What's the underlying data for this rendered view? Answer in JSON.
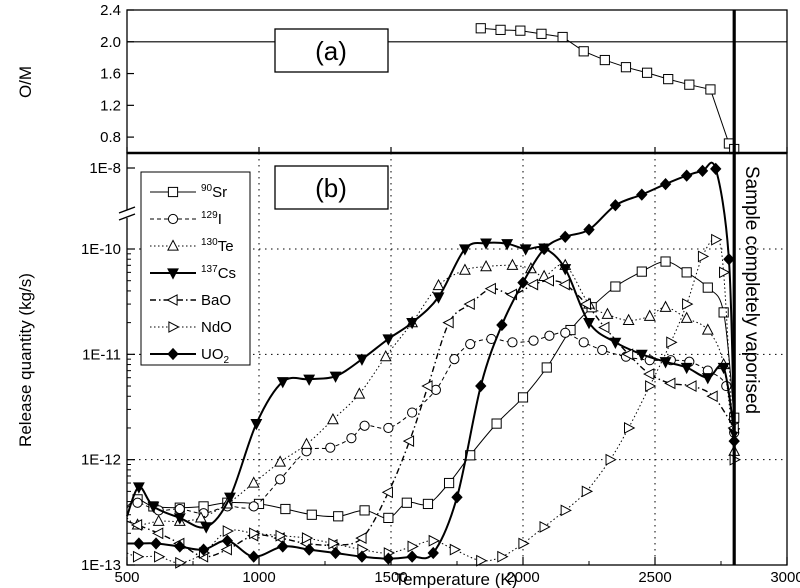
{
  "chart_data": [
    {
      "type": "line",
      "panel_label": "(a)",
      "ylabel": "O/M",
      "ylim": [
        0.6,
        2.4
      ],
      "xlim": [
        500,
        3000
      ],
      "y_ticks": [
        "2.4",
        "2.0",
        "1.6",
        "1.2",
        "0.8"
      ],
      "y_tick_values": [
        2.4,
        2.0,
        1.6,
        1.2,
        0.8
      ],
      "reference_line": 2.0,
      "series": [
        {
          "marker": "open-square",
          "x": [
            1840,
            1915,
            1990,
            2070,
            2150,
            2230,
            2310,
            2390,
            2470,
            2550,
            2630,
            2710,
            2780,
            2800
          ],
          "y": [
            2.17,
            2.15,
            2.14,
            2.1,
            2.06,
            1.88,
            1.77,
            1.68,
            1.61,
            1.53,
            1.46,
            1.4,
            0.72,
            0.65
          ]
        }
      ]
    },
    {
      "type": "line",
      "panel_label": "(b)",
      "xlabel": "Temperature (K)",
      "ylabel": "Release quantity (kg/s)",
      "y_scale": "log",
      "ylim": [
        1e-13,
        1.5e-08
      ],
      "xlim": [
        500,
        3000
      ],
      "x_ticks": [
        "500",
        "1000",
        "1500",
        "2000",
        "2500",
        "3000"
      ],
      "x_tick_values": [
        500,
        1000,
        1500,
        2000,
        2500,
        3000
      ],
      "y_ticks": [
        "1E-8",
        "1E-10",
        "1E-11",
        "1E-12",
        "1E-13"
      ],
      "y_tick_values": [
        1e-08,
        1e-10,
        1e-11,
        1e-12,
        1e-13
      ],
      "axis_break": true,
      "grid": true,
      "legend_position": "top-left",
      "vaporised_at": 2800,
      "annotation": "Sample completely vaporised",
      "series": [
        {
          "mass": "90",
          "name": "Sr",
          "sub": "",
          "marker": "open-square",
          "line": "solid",
          "x": [
            500,
            540,
            600,
            700,
            790,
            880,
            1000,
            1100,
            1200,
            1300,
            1400,
            1490,
            1560,
            1640,
            1720,
            1800,
            1900,
            2000,
            2090,
            2180,
            2260,
            2350,
            2450,
            2540,
            2620,
            2700,
            2760,
            2800
          ],
          "y": [
            3.6e-13,
            4.2e-13,
            3.6e-13,
            3.5e-13,
            3.6e-13,
            3.9e-13,
            3.8e-13,
            3.4e-13,
            3e-13,
            2.9e-13,
            3.3e-13,
            2.8e-13,
            3.9e-13,
            3.8e-13,
            6e-13,
            1.1e-12,
            2.2e-12,
            3.9e-12,
            7.5e-12,
            1.7e-11,
            2.8e-11,
            4.4e-11,
            6.1e-11,
            7.6e-11,
            6e-11,
            4.3e-11,
            2.5e-11,
            2.5e-12
          ]
        },
        {
          "mass": "129",
          "name": "I",
          "sub": "",
          "marker": "open-circle",
          "line": "dashed",
          "x": [
            500,
            540,
            620,
            700,
            790,
            880,
            980,
            1080,
            1180,
            1270,
            1350,
            1400,
            1490,
            1580,
            1670,
            1740,
            1800,
            1880,
            1960,
            2040,
            2100,
            2160,
            2230,
            2300,
            2390,
            2480,
            2560,
            2630,
            2700,
            2770,
            2800
          ],
          "y": [
            3.5e-13,
            3.9e-13,
            3.3e-13,
            3.4e-13,
            3.1e-13,
            3.6e-13,
            3.6e-13,
            6.5e-13,
            1.2e-12,
            1.3e-12,
            1.6e-12,
            2.1e-12,
            2e-12,
            2.8e-12,
            4.6e-12,
            9e-12,
            1.25e-11,
            1.4e-11,
            1.3e-11,
            1.35e-11,
            1.5e-11,
            1.6e-11,
            1.3e-11,
            1.1e-11,
            9.5e-12,
            8.8e-12,
            8.8e-12,
            8.5e-12,
            7e-12,
            5e-12,
            1.8e-12
          ]
        },
        {
          "mass": "130",
          "name": "Te",
          "sub": "",
          "marker": "open-triangle-up",
          "line": "dotted",
          "x": [
            500,
            540,
            620,
            700,
            780,
            880,
            980,
            1080,
            1180,
            1280,
            1380,
            1480,
            1580,
            1680,
            1780,
            1860,
            1960,
            2030,
            2080,
            2160,
            2250,
            2320,
            2400,
            2480,
            2540,
            2620,
            2700,
            2760,
            2800
          ],
          "y": [
            2.8e-13,
            2.4e-13,
            2.6e-13,
            2.6e-13,
            2.8e-13,
            3.8e-13,
            6e-13,
            9.5e-13,
            1.4e-12,
            2.4e-12,
            4.2e-12,
            9.5e-12,
            2e-11,
            4.5e-11,
            6.3e-11,
            6.8e-11,
            7e-11,
            6.5e-11,
            5.5e-11,
            7e-11,
            3e-11,
            2.4e-11,
            2.1e-11,
            2.3e-11,
            2.8e-11,
            2.2e-11,
            1.7e-11,
            8e-12,
            1.2e-12
          ]
        },
        {
          "mass": "137",
          "name": "Cs",
          "sub": "",
          "marker": "filled-triangle-down",
          "line": "thick-solid",
          "x": [
            500,
            545,
            600,
            700,
            800,
            890,
            990,
            1090,
            1190,
            1290,
            1390,
            1490,
            1580,
            1680,
            1780,
            1860,
            1940,
            2010,
            2080,
            2160,
            2250,
            2350,
            2450,
            2540,
            2620,
            2700,
            2760,
            2800
          ],
          "y": [
            2.9e-13,
            5.5e-13,
            3.6e-13,
            2.8e-13,
            2.3e-13,
            4.4e-13,
            2.2e-12,
            5.5e-12,
            5.8e-12,
            6.2e-12,
            9e-12,
            1.4e-11,
            2e-11,
            3.5e-11,
            1e-10,
            1.4e-10,
            1.35e-10,
            1e-10,
            1.05e-10,
            6.5e-11,
            2e-11,
            1.3e-11,
            1e-11,
            8.5e-12,
            7.5e-12,
            6e-12,
            7.5e-12,
            1.8e-12
          ]
        },
        {
          "mass": "",
          "name": "BaO",
          "sub": "",
          "marker": "open-triangle-left",
          "line": "dash-dot",
          "x": [
            500,
            540,
            620,
            700,
            790,
            880,
            980,
            1080,
            1180,
            1280,
            1390,
            1490,
            1570,
            1640,
            1720,
            1800,
            1880,
            1960,
            2040,
            2100,
            2160,
            2240,
            2310,
            2400,
            2480,
            2560,
            2640,
            2720,
            2800
          ],
          "y": [
            2.6e-13,
            2.4e-13,
            2e-13,
            1.6e-13,
            1.2e-13,
            1.4e-13,
            1.9e-13,
            1.8e-13,
            1.6e-13,
            1.55e-13,
            1.8e-13,
            4.9e-13,
            1.5e-12,
            5e-12,
            2e-11,
            3e-11,
            4.2e-11,
            3.7e-11,
            4.6e-11,
            5e-11,
            4.6e-11,
            3e-11,
            1.8e-11,
            1e-11,
            6.5e-12,
            5.3e-12,
            5e-12,
            4e-12,
            2e-12
          ]
        },
        {
          "mass": "",
          "name": "NdO",
          "sub": "",
          "marker": "open-triangle-right",
          "line": "dotted",
          "x": [
            500,
            540,
            620,
            700,
            790,
            880,
            980,
            1080,
            1180,
            1280,
            1390,
            1490,
            1580,
            1660,
            1740,
            1840,
            1920,
            2000,
            2080,
            2160,
            2240,
            2330,
            2400,
            2480,
            2560,
            2620,
            2680,
            2730,
            2760,
            2800
          ],
          "y": [
            1.3e-13,
            1.2e-13,
            1.2e-13,
            1.05e-13,
            1.3e-13,
            2.1e-13,
            2e-13,
            1.9e-13,
            1.8e-13,
            1.6e-13,
            1.4e-13,
            1.3e-13,
            1.5e-13,
            1.7e-13,
            1.4e-13,
            1.1e-13,
            1.2e-13,
            1.6e-13,
            2.3e-13,
            3.3e-13,
            5e-13,
            1e-12,
            2e-12,
            5e-12,
            1.3e-11,
            3e-11,
            8.5e-11,
            1.7e-10,
            6e-11,
            1e-12
          ]
        },
        {
          "mass": "",
          "name": "UO",
          "sub": "2",
          "marker": "filled-diamond",
          "line": "thick-solid",
          "x": [
            500,
            545,
            610,
            700,
            790,
            880,
            980,
            1090,
            1190,
            1290,
            1390,
            1490,
            1580,
            1660,
            1750,
            1840,
            1920,
            2000,
            2080,
            2160,
            2250,
            2350,
            2450,
            2540,
            2620,
            2680,
            2730,
            2780,
            2800
          ],
          "y": [
            1.6e-13,
            1.6e-13,
            1.6e-13,
            1.5e-13,
            1.4e-13,
            1.7e-13,
            1.2e-13,
            1.5e-13,
            1.4e-13,
            1.3e-13,
            1.2e-13,
            1.15e-13,
            1.2e-13,
            1.3e-13,
            4.4e-13,
            5e-12,
            1.9e-11,
            4.8e-11,
            1e-10,
            2e-10,
            3e-10,
            1.2e-09,
            2.2e-09,
            4e-09,
            6.5e-09,
            8.5e-09,
            9.5e-09,
            8e-11,
            1.5e-12
          ]
        }
      ]
    }
  ]
}
